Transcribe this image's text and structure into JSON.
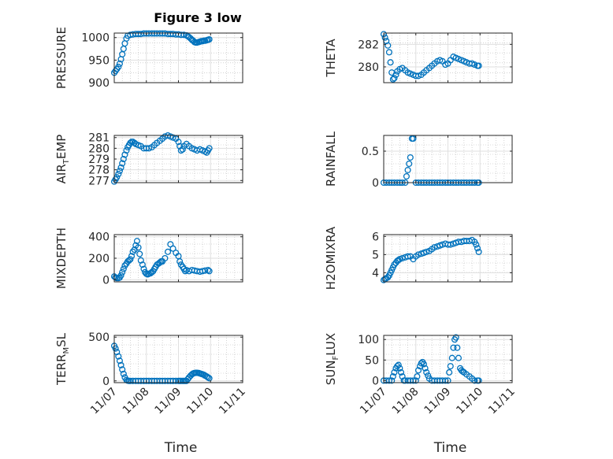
{
  "figure_title": "Figure 3 low",
  "colors": {
    "marker": "#0072BD",
    "axis": "#262626",
    "grid": "#dfdfdf",
    "minor_grid": "#b8b8b8"
  },
  "chart_data": [
    {
      "type": "scatter",
      "id": "pressure",
      "ylabel": {
        "main": "PRESSURE",
        "sub": "",
        "rest": ""
      },
      "xlim": [
        0,
        4
      ],
      "ylim": [
        900,
        1010
      ],
      "yticks": [
        900,
        950,
        1000
      ],
      "xticks": [
        0,
        1,
        2,
        3,
        4
      ],
      "xticklabels": [
        "11/07",
        "11/08",
        "11/09",
        "11/10",
        "11/11"
      ],
      "show_xlabels": false,
      "xlabel": "",
      "x": [
        0,
        0.04,
        0.08,
        0.13,
        0.17,
        0.21,
        0.25,
        0.29,
        0.33,
        0.38,
        0.42,
        0.5,
        0.58,
        0.67,
        0.75,
        0.83,
        0.92,
        1.0,
        1.08,
        1.17,
        1.25,
        1.33,
        1.42,
        1.5,
        1.58,
        1.67,
        1.75,
        1.83,
        1.92,
        2.0,
        2.08,
        2.17,
        2.25,
        2.29,
        2.33,
        2.38,
        2.42,
        2.46,
        2.5,
        2.54,
        2.58,
        2.63,
        2.67,
        2.71,
        2.75,
        2.79,
        2.83,
        2.88,
        2.92,
        2.96
      ],
      "y": [
        922,
        926,
        930,
        935,
        942,
        952,
        963,
        975,
        987,
        998,
        1004,
        1006,
        1007,
        1008,
        1008,
        1008,
        1009,
        1009,
        1009,
        1009,
        1009,
        1009,
        1009,
        1009,
        1009,
        1008,
        1008,
        1008,
        1007,
        1007,
        1006,
        1006,
        1005,
        1003,
        1001,
        998,
        995,
        993,
        990,
        989,
        989,
        990,
        991,
        992,
        992,
        993,
        993,
        994,
        995,
        996
      ]
    },
    {
      "type": "scatter",
      "id": "theta",
      "ylabel": {
        "main": "THETA",
        "sub": "",
        "rest": ""
      },
      "xlim": [
        0,
        4
      ],
      "ylim": [
        278.6,
        283.0
      ],
      "yticks": [
        280,
        282
      ],
      "xticks": [
        0,
        1,
        2,
        3,
        4
      ],
      "xticklabels": [
        "11/07",
        "11/08",
        "11/09",
        "11/10",
        "11/11"
      ],
      "show_xlabels": false,
      "xlabel": "",
      "x": [
        0,
        0.04,
        0.08,
        0.13,
        0.17,
        0.21,
        0.25,
        0.29,
        0.33,
        0.38,
        0.42,
        0.5,
        0.58,
        0.67,
        0.75,
        0.83,
        0.92,
        1.0,
        1.08,
        1.17,
        1.25,
        1.33,
        1.42,
        1.5,
        1.58,
        1.67,
        1.75,
        1.83,
        1.92,
        2.0,
        2.08,
        2.17,
        2.25,
        2.33,
        2.42,
        2.5,
        2.58,
        2.67,
        2.75,
        2.83,
        2.92,
        2.96
      ],
      "y": [
        282.9,
        282.6,
        282.3,
        281.9,
        281.3,
        280.4,
        279.5,
        278.9,
        279.0,
        279.3,
        279.6,
        279.8,
        279.9,
        279.7,
        279.5,
        279.4,
        279.3,
        279.2,
        279.2,
        279.3,
        279.5,
        279.7,
        279.9,
        280.1,
        280.3,
        280.5,
        280.6,
        280.5,
        280.2,
        280.3,
        280.6,
        280.9,
        280.8,
        280.7,
        280.6,
        280.5,
        280.4,
        280.3,
        280.3,
        280.2,
        280.1,
        280.1
      ]
    },
    {
      "type": "scatter",
      "id": "air_temp",
      "ylabel": {
        "main": "AIR",
        "sub": "T",
        "rest": "EMP"
      },
      "xlim": [
        0,
        4
      ],
      "ylim": [
        276.8,
        281.2
      ],
      "yticks": [
        277,
        278,
        279,
        280,
        281
      ],
      "xticks": [
        0,
        1,
        2,
        3,
        4
      ],
      "xticklabels": [
        "11/07",
        "11/08",
        "11/09",
        "11/10",
        "11/11"
      ],
      "show_xlabels": false,
      "xlabel": "",
      "x": [
        0,
        0.04,
        0.08,
        0.13,
        0.17,
        0.21,
        0.25,
        0.29,
        0.33,
        0.38,
        0.42,
        0.46,
        0.5,
        0.54,
        0.58,
        0.63,
        0.67,
        0.75,
        0.83,
        0.92,
        1.0,
        1.08,
        1.17,
        1.25,
        1.33,
        1.42,
        1.5,
        1.58,
        1.67,
        1.75,
        1.83,
        1.92,
        2.0,
        2.04,
        2.08,
        2.13,
        2.17,
        2.25,
        2.33,
        2.42,
        2.5,
        2.58,
        2.67,
        2.75,
        2.83,
        2.88,
        2.92,
        2.96
      ],
      "y": [
        276.9,
        277.1,
        277.3,
        277.6,
        277.9,
        278.2,
        278.6,
        279.0,
        279.4,
        279.8,
        280.1,
        280.3,
        280.5,
        280.6,
        280.6,
        280.5,
        280.4,
        280.3,
        280.2,
        280.0,
        280.0,
        280.0,
        280.1,
        280.3,
        280.5,
        280.7,
        280.9,
        281.1,
        281.2,
        281.1,
        281.0,
        280.9,
        280.6,
        280.2,
        279.8,
        279.9,
        280.2,
        280.4,
        280.2,
        280.0,
        279.9,
        279.8,
        279.9,
        279.8,
        279.7,
        279.6,
        279.8,
        280.0
      ]
    },
    {
      "type": "scatter",
      "id": "rainfall",
      "ylabel": {
        "main": "RAINFALL",
        "sub": "",
        "rest": ""
      },
      "xlim": [
        0,
        4
      ],
      "ylim": [
        0,
        0.75
      ],
      "yticks": [
        0,
        0.5
      ],
      "xticks": [
        0,
        1,
        2,
        3,
        4
      ],
      "xticklabels": [
        "11/07",
        "11/08",
        "11/09",
        "11/10",
        "11/11"
      ],
      "show_xlabels": false,
      "xlabel": "",
      "x": [
        0,
        0.08,
        0.17,
        0.25,
        0.33,
        0.42,
        0.5,
        0.58,
        0.67,
        0.71,
        0.75,
        0.79,
        0.83,
        0.88,
        0.92,
        1.0,
        1.08,
        1.17,
        1.25,
        1.33,
        1.42,
        1.5,
        1.58,
        1.67,
        1.75,
        1.83,
        1.92,
        2.0,
        2.08,
        2.17,
        2.25,
        2.33,
        2.42,
        2.5,
        2.58,
        2.67,
        2.75,
        2.83,
        2.92,
        2.96
      ],
      "y": [
        0,
        0,
        0,
        0,
        0,
        0,
        0,
        0,
        0,
        0.1,
        0.2,
        0.3,
        0.4,
        0.7,
        0.7,
        0,
        0,
        0,
        0,
        0,
        0,
        0,
        0,
        0,
        0,
        0,
        0,
        0,
        0,
        0,
        0,
        0,
        0,
        0,
        0,
        0,
        0,
        0,
        0,
        0
      ]
    },
    {
      "type": "scatter",
      "id": "mixdepth",
      "ylabel": {
        "main": "MIXDEPTH",
        "sub": "",
        "rest": ""
      },
      "xlim": [
        0,
        4
      ],
      "ylim": [
        -20,
        420
      ],
      "yticks": [
        0,
        200,
        400
      ],
      "xticks": [
        0,
        1,
        2,
        3,
        4
      ],
      "xticklabels": [
        "11/07",
        "11/08",
        "11/09",
        "11/10",
        "11/11"
      ],
      "show_xlabels": false,
      "xlabel": "",
      "x": [
        0,
        0.04,
        0.08,
        0.13,
        0.17,
        0.21,
        0.25,
        0.29,
        0.33,
        0.38,
        0.42,
        0.46,
        0.5,
        0.54,
        0.58,
        0.63,
        0.67,
        0.71,
        0.75,
        0.79,
        0.83,
        0.88,
        0.92,
        0.96,
        1.0,
        1.04,
        1.08,
        1.13,
        1.17,
        1.21,
        1.25,
        1.29,
        1.33,
        1.38,
        1.42,
        1.46,
        1.5,
        1.58,
        1.67,
        1.75,
        1.83,
        1.92,
        2.0,
        2.04,
        2.08,
        2.13,
        2.17,
        2.21,
        2.25,
        2.33,
        2.42,
        2.5,
        2.58,
        2.67,
        2.75,
        2.83,
        2.92,
        2.96
      ],
      "y": [
        30,
        20,
        15,
        15,
        20,
        40,
        70,
        100,
        130,
        150,
        170,
        180,
        190,
        220,
        260,
        280,
        320,
        360,
        300,
        240,
        180,
        140,
        100,
        70,
        55,
        50,
        55,
        60,
        70,
        80,
        100,
        120,
        140,
        150,
        160,
        170,
        170,
        200,
        260,
        330,
        290,
        250,
        220,
        170,
        140,
        120,
        100,
        80,
        90,
        80,
        90,
        85,
        80,
        75,
        80,
        85,
        90,
        80
      ]
    },
    {
      "type": "scatter",
      "id": "h2omixra",
      "ylabel": {
        "main": "H2OMIXRA",
        "sub": "",
        "rest": ""
      },
      "xlim": [
        0,
        4
      ],
      "ylim": [
        3.5,
        6.1
      ],
      "yticks": [
        4,
        5,
        6
      ],
      "xticks": [
        0,
        1,
        2,
        3,
        4
      ],
      "xticklabels": [
        "11/07",
        "11/08",
        "11/09",
        "11/10",
        "11/11"
      ],
      "show_xlabels": false,
      "xlabel": "",
      "x": [
        0,
        0.04,
        0.08,
        0.13,
        0.17,
        0.21,
        0.25,
        0.29,
        0.33,
        0.38,
        0.42,
        0.46,
        0.5,
        0.58,
        0.67,
        0.75,
        0.83,
        0.92,
        1.0,
        1.08,
        1.17,
        1.25,
        1.33,
        1.42,
        1.5,
        1.58,
        1.67,
        1.75,
        1.83,
        1.92,
        2.0,
        2.08,
        2.17,
        2.25,
        2.33,
        2.42,
        2.5,
        2.58,
        2.67,
        2.75,
        2.83,
        2.88,
        2.92,
        2.96
      ],
      "y": [
        3.6,
        3.65,
        3.7,
        3.75,
        3.85,
        4.0,
        4.15,
        4.3,
        4.45,
        4.55,
        4.65,
        4.7,
        4.75,
        4.8,
        4.85,
        4.9,
        4.9,
        4.75,
        4.9,
        5.0,
        5.05,
        5.1,
        5.15,
        5.2,
        5.3,
        5.4,
        5.45,
        5.5,
        5.55,
        5.6,
        5.55,
        5.55,
        5.6,
        5.65,
        5.7,
        5.7,
        5.75,
        5.75,
        5.75,
        5.8,
        5.7,
        5.55,
        5.35,
        5.15
      ]
    },
    {
      "type": "scatter",
      "id": "terr_msl",
      "ylabel": {
        "main": "TERR",
        "sub": "M",
        "rest": "SL"
      },
      "xlim": [
        0,
        4
      ],
      "ylim": [
        -20,
        520
      ],
      "yticks": [
        0,
        500
      ],
      "xticks": [
        0,
        1,
        2,
        3,
        4
      ],
      "xticklabels": [
        "11/07",
        "11/08",
        "11/09",
        "11/10",
        "11/11"
      ],
      "show_xlabels": true,
      "xlabel": "Time",
      "x": [
        0,
        0.04,
        0.08,
        0.13,
        0.17,
        0.21,
        0.25,
        0.29,
        0.33,
        0.38,
        0.42,
        0.46,
        0.5,
        0.58,
        0.67,
        0.75,
        0.83,
        0.92,
        1.0,
        1.08,
        1.17,
        1.25,
        1.33,
        1.42,
        1.5,
        1.58,
        1.67,
        1.75,
        1.83,
        1.92,
        2.0,
        2.04,
        2.08,
        2.13,
        2.17,
        2.21,
        2.25,
        2.29,
        2.33,
        2.38,
        2.42,
        2.46,
        2.5,
        2.54,
        2.58,
        2.63,
        2.67,
        2.71,
        2.75,
        2.79,
        2.83,
        2.88,
        2.92,
        2.96
      ],
      "y": [
        400,
        370,
        330,
        280,
        230,
        180,
        130,
        80,
        40,
        10,
        2,
        0,
        0,
        0,
        0,
        0,
        0,
        0,
        0,
        0,
        0,
        0,
        0,
        0,
        0,
        0,
        0,
        0,
        0,
        0,
        0,
        0,
        0,
        0,
        0,
        0,
        0,
        20,
        40,
        60,
        75,
        85,
        90,
        92,
        92,
        90,
        85,
        80,
        75,
        70,
        60,
        50,
        40,
        30
      ]
    },
    {
      "type": "scatter",
      "id": "sun_flux",
      "ylabel": {
        "main": "SUN",
        "sub": "F",
        "rest": "LUX"
      },
      "xlim": [
        0,
        4
      ],
      "ylim": [
        -5,
        110
      ],
      "yticks": [
        0,
        50,
        100
      ],
      "xticks": [
        0,
        1,
        2,
        3,
        4
      ],
      "xticklabels": [
        "11/07",
        "11/08",
        "11/09",
        "11/10",
        "11/11"
      ],
      "show_xlabels": true,
      "xlabel": "Time",
      "x": [
        0,
        0.08,
        0.17,
        0.25,
        0.29,
        0.33,
        0.38,
        0.42,
        0.46,
        0.5,
        0.54,
        0.58,
        0.63,
        0.67,
        0.75,
        0.83,
        0.92,
        1.0,
        1.04,
        1.08,
        1.13,
        1.17,
        1.21,
        1.25,
        1.29,
        1.33,
        1.38,
        1.42,
        1.5,
        1.58,
        1.67,
        1.75,
        1.83,
        1.92,
        2.0,
        2.04,
        2.08,
        2.13,
        2.17,
        2.21,
        2.25,
        2.29,
        2.33,
        2.38,
        2.42,
        2.46,
        2.5,
        2.58,
        2.67,
        2.75,
        2.83,
        2.92,
        2.96
      ],
      "y": [
        0,
        0,
        0,
        0,
        10,
        20,
        30,
        35,
        38,
        30,
        20,
        10,
        0,
        0,
        0,
        0,
        0,
        0,
        10,
        25,
        35,
        42,
        45,
        40,
        30,
        20,
        12,
        5,
        0,
        0,
        0,
        0,
        0,
        0,
        0,
        20,
        35,
        55,
        80,
        100,
        105,
        80,
        55,
        30,
        25,
        22,
        20,
        15,
        10,
        5,
        0,
        0,
        0
      ]
    }
  ]
}
